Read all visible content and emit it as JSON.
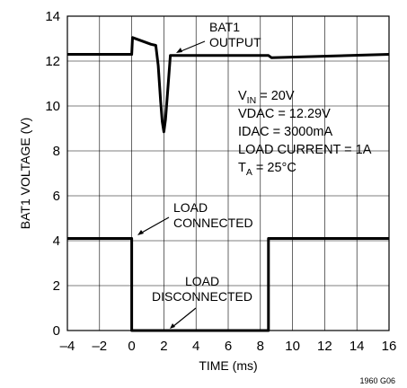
{
  "chart_data": {
    "type": "line",
    "xlabel": "TIME (ms)",
    "ylabel": "BAT1 VOLTAGE (V)",
    "xlim": [
      -4,
      16
    ],
    "ylim": [
      0,
      14
    ],
    "x_ticks": [
      -4,
      -2,
      0,
      2,
      4,
      6,
      8,
      10,
      12,
      14,
      16
    ],
    "y_ticks": [
      0,
      2,
      4,
      6,
      8,
      10,
      12,
      14
    ],
    "x_tick_labels": [
      "–4",
      "–2",
      "0",
      "2",
      "4",
      "6",
      "8",
      "10",
      "12",
      "14",
      "16"
    ],
    "y_tick_labels": [
      "0",
      "2",
      "4",
      "6",
      "8",
      "10",
      "12",
      "14"
    ],
    "grid": true,
    "series": [
      {
        "name": "BAT1 OUTPUT",
        "points": [
          [
            -4,
            12.3
          ],
          [
            0,
            12.3
          ],
          [
            0.05,
            13.05
          ],
          [
            1.2,
            12.75
          ],
          [
            1.5,
            12.7
          ],
          [
            1.65,
            11.8
          ],
          [
            1.8,
            10.2
          ],
          [
            1.9,
            9.3
          ],
          [
            2.0,
            8.85
          ],
          [
            2.1,
            9.4
          ],
          [
            2.25,
            10.8
          ],
          [
            2.4,
            12.25
          ],
          [
            8.5,
            12.25
          ],
          [
            8.7,
            12.15
          ],
          [
            16,
            12.3
          ]
        ]
      },
      {
        "name": "LOAD",
        "points": [
          [
            -4,
            4.1
          ],
          [
            0,
            4.1
          ],
          [
            0,
            0
          ],
          [
            8.5,
            0
          ],
          [
            8.5,
            4.1
          ],
          [
            16,
            4.1
          ]
        ]
      }
    ],
    "annotations": {
      "bat1_output": [
        "BAT1",
        "OUTPUT"
      ],
      "load_connected": [
        "LOAD",
        "CONNECTED"
      ],
      "load_disconnected": [
        "LOAD",
        "DISCONNECTED"
      ]
    },
    "conditions": {
      "vin": {
        "main": "V",
        "sub": "IN",
        "rest": " = 20V"
      },
      "vdac": "VDAC = 12.29V",
      "idac": "IDAC = 3000mA",
      "load_current": "LOAD CURRENT = 1A",
      "ta": {
        "main": "T",
        "sub": "A",
        "rest": " = 25°C"
      }
    },
    "figure_id": "1960 G06"
  }
}
